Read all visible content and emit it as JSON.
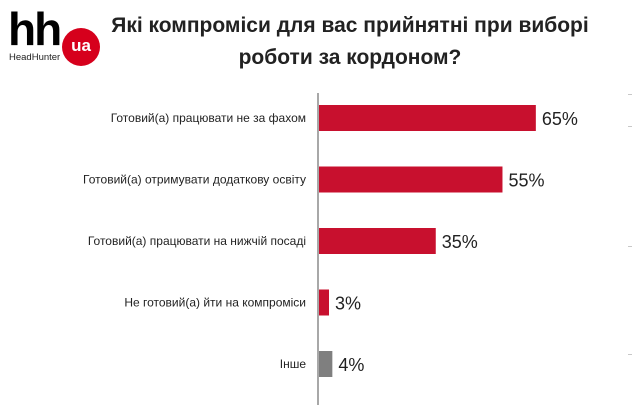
{
  "logo": {
    "brand": "hh",
    "badge": "ua",
    "sub": "HeadHunter"
  },
  "title_lines": [
    "Які компроміси для вас прийнятні при виборі",
    "роботи за кордоном?"
  ],
  "colors": {
    "primary_bar": "#c8102e",
    "other_bar": "#7f7f7f",
    "axis": "#8c8c8c",
    "text": "#222222",
    "brand_red": "#d6001c"
  },
  "chart_data": {
    "type": "bar",
    "orientation": "horizontal",
    "title": "Які компроміси для вас прийнятні при виборі роботи за кордоном?",
    "categories": [
      "Готовий(а) працювати не за фахом",
      "Готовий(а) отримувати додаткову освіту",
      "Готовий(а) працювати на нижчій посаді",
      "Не готовий(а) йти на компроміси",
      "Інше"
    ],
    "values": [
      65,
      55,
      35,
      3,
      4
    ],
    "value_labels": [
      "65%",
      "55%",
      "35%",
      "3%",
      "4%"
    ],
    "unit": "%",
    "xlim": [
      0,
      75
    ],
    "grid": false,
    "legend": "none"
  }
}
